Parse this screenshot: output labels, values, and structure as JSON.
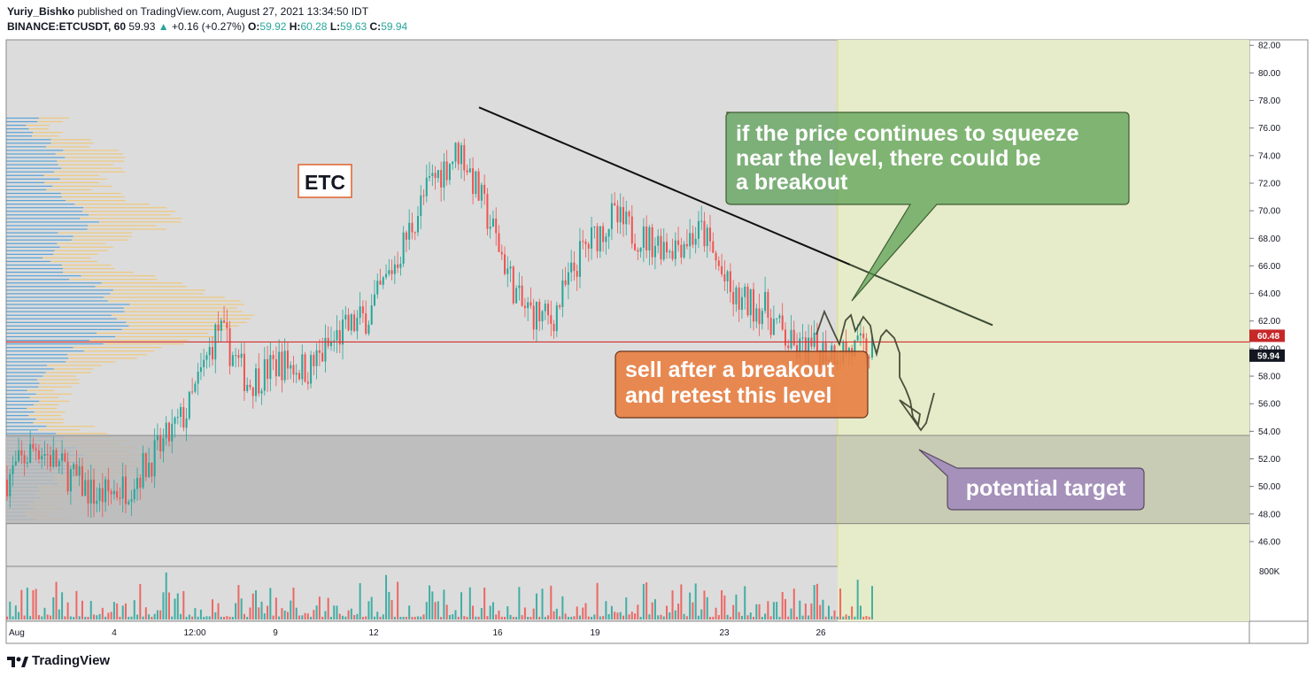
{
  "header": {
    "author": "Yuriy_Bishko",
    "published_text": "published on TradingView.com, August 27, 2021 13:34:50 IDT",
    "symbol": "BINANCE:ETCUSDT, 60",
    "last": "59.93",
    "change_arrow": "▲",
    "change": "+0.16 (+0.27%)",
    "o_label": "O:",
    "o": "59.92",
    "h_label": "H:",
    "h": "60.28",
    "l_label": "L:",
    "l": "59.63",
    "c_label": "C:",
    "c": "59.94"
  },
  "annotations": {
    "etc_label": "ETC",
    "green_callout": [
      "if the price continues to squeeze",
      "near the level, there could be",
      "a breakout"
    ],
    "orange_callout": [
      "sell after a breakout",
      "and retest this level"
    ],
    "purple_callout": "potential target"
  },
  "price_badges": {
    "level": "60.48",
    "current": "59.94"
  },
  "logo_text": "TradingView",
  "chart_data": {
    "type": "candlestick",
    "title": "",
    "y_axis": {
      "ticks": [
        "82.00",
        "80.00",
        "78.00",
        "76.00",
        "74.00",
        "72.00",
        "70.00",
        "68.00",
        "66.00",
        "64.00",
        "62.00",
        "60.00",
        "58.00",
        "56.00",
        "54.00",
        "52.00",
        "50.00",
        "48.00",
        "46.00"
      ],
      "ylim": [
        44.2,
        82.4
      ]
    },
    "volume_axis": {
      "ticks": [
        "800K"
      ]
    },
    "x_axis": {
      "ticks": [
        "Aug",
        "4",
        "12:00",
        "9",
        "12",
        "16",
        "19",
        "23",
        "26"
      ]
    },
    "levels": {
      "horizontal_level": 60.48,
      "target_zone": [
        47.3,
        53.7
      ]
    },
    "trendline": {
      "from": [
        "Aug 15",
        77.5
      ],
      "to": [
        "Aug 28",
        61.7
      ]
    },
    "series": [
      {
        "name": "price path (approx)",
        "points": [
          [
            "Aug 1",
            50.5
          ],
          [
            "Aug 2",
            53.0
          ],
          [
            "Aug 3",
            51.0
          ],
          [
            "Aug 4",
            49.2
          ],
          [
            "Aug 5",
            50.0
          ],
          [
            "Aug 6",
            52.5
          ],
          [
            "Aug 7",
            55.5
          ],
          [
            "Aug 8",
            61.5
          ],
          [
            "Aug 9",
            57.5
          ],
          [
            "Aug 10",
            59.0
          ],
          [
            "Aug 11",
            58.5
          ],
          [
            "Aug 12",
            61.0
          ],
          [
            "Aug 13",
            62.5
          ],
          [
            "Aug 14",
            67.0
          ],
          [
            "Aug 15",
            72.0
          ],
          [
            "Aug 16",
            74.5
          ],
          [
            "Aug 17",
            69.0
          ],
          [
            "Aug 18",
            63.0
          ],
          [
            "Aug 19",
            62.0
          ],
          [
            "Aug 20",
            67.0
          ],
          [
            "Aug 21",
            69.5
          ],
          [
            "Aug 22",
            68.0
          ],
          [
            "Aug 23",
            67.5
          ],
          [
            "Aug 24",
            68.5
          ],
          [
            "Aug 25",
            63.5
          ],
          [
            "Aug 26",
            63.0
          ],
          [
            "Aug 27",
            59.9
          ]
        ]
      }
    ]
  },
  "colors": {
    "bull": "#26a69a",
    "bear": "#ef5350",
    "level": "#d32f2f",
    "forecast_bg": "#e6ebc9",
    "zone": "#b8b8b8"
  }
}
